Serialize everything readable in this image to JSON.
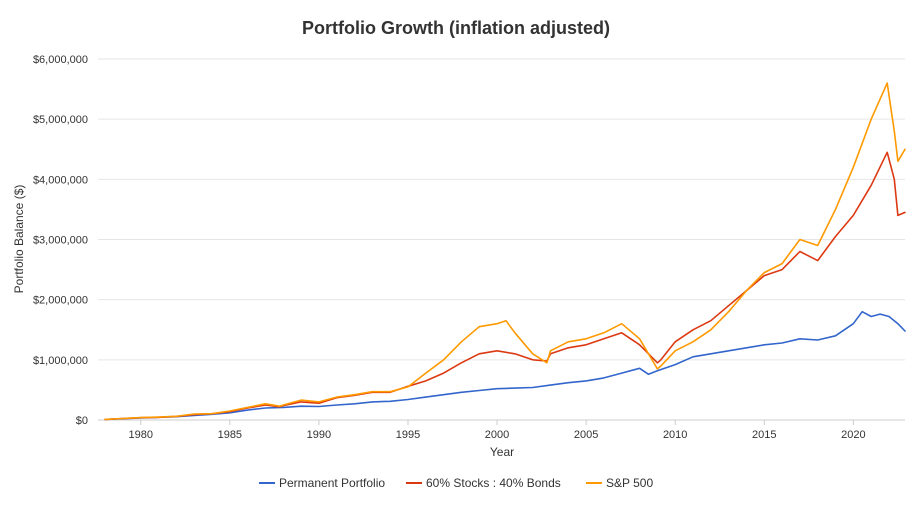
{
  "chart_data": {
    "type": "line",
    "title": "Portfolio Growth (inflation adjusted)",
    "xlabel": "Year",
    "ylabel": "Portfolio Balance ($)",
    "xlim": [
      1977.6,
      2022.9
    ],
    "ylim": [
      0,
      6000000
    ],
    "grid": true,
    "legend_position": "bottom",
    "y_ticks": [
      0,
      1000000,
      2000000,
      3000000,
      4000000,
      5000000,
      6000000
    ],
    "y_tick_labels": [
      "$0",
      "$1,000,000",
      "$2,000,000",
      "$3,000,000",
      "$4,000,000",
      "$5,000,000",
      "$6,000,000"
    ],
    "x_ticks": [
      1980,
      1985,
      1990,
      1995,
      2000,
      2005,
      2010,
      2015,
      2020
    ],
    "x_tick_labels": [
      "1980",
      "1985",
      "1990",
      "1995",
      "2000",
      "2005",
      "2010",
      "2015",
      "2020"
    ],
    "series": [
      {
        "name": "Permanent Portfolio",
        "color": "#3366cc",
        "x": [
          1978,
          1979,
          1980,
          1981,
          1982,
          1983,
          1984,
          1985,
          1986,
          1987,
          1988,
          1989,
          1990,
          1991,
          1992,
          1993,
          1994,
          1995,
          1996,
          1997,
          1998,
          1999,
          2000,
          2001,
          2002,
          2003,
          2004,
          2005,
          2006,
          2007,
          2008,
          2008.5,
          2009,
          2010,
          2011,
          2012,
          2013,
          2014,
          2015,
          2016,
          2017,
          2018,
          2019,
          2020,
          2020.5,
          2021,
          2021.5,
          2022,
          2022.5,
          2022.9
        ],
        "y": [
          10000,
          22000,
          35000,
          45000,
          55000,
          75000,
          95000,
          120000,
          165000,
          200000,
          210000,
          230000,
          225000,
          250000,
          270000,
          300000,
          310000,
          340000,
          380000,
          420000,
          460000,
          490000,
          520000,
          530000,
          540000,
          580000,
          620000,
          650000,
          700000,
          780000,
          860000,
          760000,
          820000,
          920000,
          1050000,
          1100000,
          1150000,
          1200000,
          1250000,
          1280000,
          1350000,
          1330000,
          1400000,
          1600000,
          1800000,
          1720000,
          1760000,
          1720000,
          1600000,
          1480000
        ]
      },
      {
        "name": "60% Stocks : 40% Bonds",
        "color": "#dc3912",
        "x": [
          1978,
          1979,
          1980,
          1981,
          1982,
          1983,
          1984,
          1985,
          1986,
          1987,
          1987.8,
          1988,
          1989,
          1990,
          1991,
          1992,
          1993,
          1994,
          1995,
          1996,
          1997,
          1998,
          1999,
          2000,
          2001,
          2002,
          2002.8,
          2003,
          2004,
          2005,
          2006,
          2007,
          2008,
          2009,
          2009.2,
          2010,
          2011,
          2012,
          2013,
          2014,
          2015,
          2016,
          2017,
          2018,
          2019,
          2020,
          2021,
          2021.9,
          2022.3,
          2022.5,
          2022.9
        ],
        "y": [
          10000,
          25000,
          38000,
          45000,
          60000,
          90000,
          105000,
          140000,
          200000,
          250000,
          220000,
          240000,
          300000,
          280000,
          370000,
          410000,
          460000,
          460000,
          560000,
          650000,
          780000,
          950000,
          1100000,
          1150000,
          1100000,
          1000000,
          980000,
          1100000,
          1200000,
          1250000,
          1350000,
          1450000,
          1250000,
          950000,
          1000000,
          1300000,
          1500000,
          1650000,
          1900000,
          2150000,
          2400000,
          2500000,
          2800000,
          2650000,
          3050000,
          3400000,
          3900000,
          4450000,
          4000000,
          3400000,
          3450000
        ]
      },
      {
        "name": "S&P 500",
        "color": "#ff9900",
        "x": [
          1978,
          1979,
          1980,
          1981,
          1982,
          1983,
          1984,
          1985,
          1986,
          1987,
          1987.8,
          1988,
          1989,
          1990,
          1991,
          1992,
          1993,
          1994,
          1995,
          1996,
          1997,
          1998,
          1999,
          2000,
          2000.5,
          2001,
          2002,
          2002.8,
          2003,
          2004,
          2005,
          2006,
          2007,
          2008,
          2009,
          2009.2,
          2010,
          2011,
          2012,
          2013,
          2014,
          2015,
          2016,
          2017,
          2018,
          2019,
          2020,
          2021,
          2021.9,
          2022.3,
          2022.5,
          2022.9
        ],
        "y": [
          10000,
          25000,
          40000,
          48000,
          62000,
          100000,
          105000,
          150000,
          210000,
          270000,
          230000,
          250000,
          330000,
          300000,
          380000,
          420000,
          470000,
          470000,
          550000,
          780000,
          1000000,
          1300000,
          1550000,
          1600000,
          1650000,
          1450000,
          1100000,
          950000,
          1150000,
          1300000,
          1350000,
          1450000,
          1600000,
          1350000,
          850000,
          900000,
          1150000,
          1300000,
          1500000,
          1800000,
          2150000,
          2450000,
          2600000,
          3000000,
          2900000,
          3500000,
          4200000,
          5000000,
          5600000,
          4800000,
          4300000,
          4500000
        ]
      }
    ]
  }
}
